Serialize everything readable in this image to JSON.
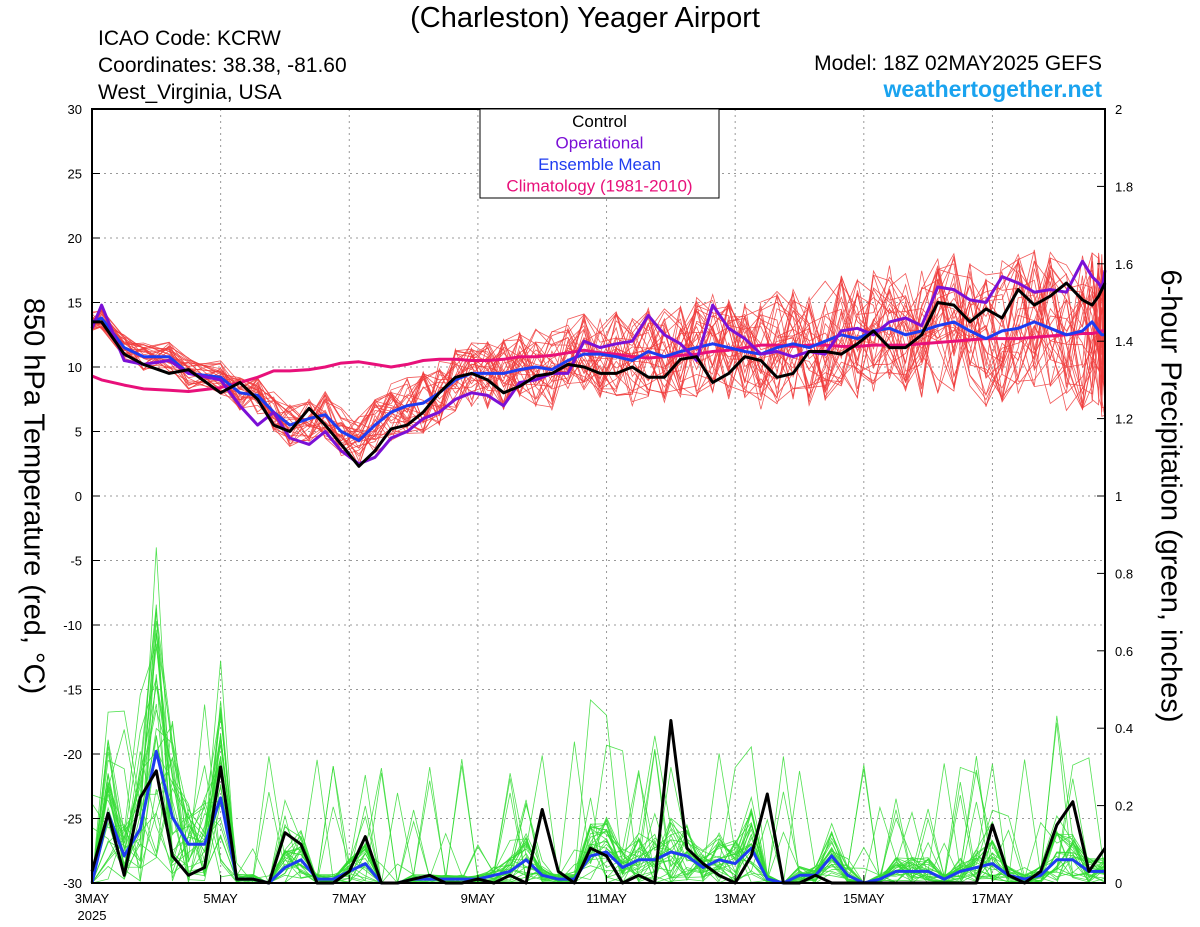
{
  "header": {
    "title": "(Charleston) Yeager Airport",
    "icao": "ICAO Code: KCRW",
    "coordinates": "Coordinates: 38.38, -81.60",
    "location": "West_Virginia, USA",
    "model": "Model: 18Z 02MAY2025 GEFS",
    "site": "weathertogether.net"
  },
  "colors": {
    "control": "#000000",
    "operational": "#7b10d6",
    "ensemble_mean": "#1e3cf0",
    "climatology": "#e8107a",
    "members_temp": "#f03c3c",
    "members_precip": "#32dc32",
    "site": "#1aa3ef"
  },
  "chart_data": {
    "type": "line",
    "ylabel": "850 hPa Temperature (red, °C)",
    "y2label": "6-hour Precipitation (green, inches)",
    "ylim": [
      -30,
      30
    ],
    "y2lim": [
      0,
      2
    ],
    "yticks": [
      "30",
      "25",
      "20",
      "15",
      "10",
      "5",
      "0",
      "-5",
      "-10",
      "-15",
      "-20",
      "-25",
      "-30"
    ],
    "y2ticks": [
      "2",
      "1.8",
      "1.6",
      "1.4",
      "1.2",
      "1",
      "0.8",
      "0.6",
      "0.4",
      "0.2",
      "0"
    ],
    "xlim": [
      0,
      63
    ],
    "xticks": [
      {
        "pos": 0,
        "label": "3MAY",
        "label2": "2025"
      },
      {
        "pos": 8,
        "label": "5MAY"
      },
      {
        "pos": 16,
        "label": "7MAY"
      },
      {
        "pos": 24,
        "label": "9MAY"
      },
      {
        "pos": 32,
        "label": "11MAY"
      },
      {
        "pos": 40,
        "label": "13MAY"
      },
      {
        "pos": 48,
        "label": "15MAY"
      },
      {
        "pos": 56,
        "label": "17MAY"
      }
    ],
    "grid": true,
    "legend_position": "top-center",
    "legend": [
      "Control",
      "Operational",
      "Ensemble Mean",
      "Climatology (1981-2010)"
    ],
    "temperature_series": [
      {
        "name": "Control",
        "values": [
          13.5,
          13.5,
          11.0,
          10.2,
          9.5,
          9.8,
          8.0,
          8.8,
          7.5,
          5.5,
          5.0,
          6.8,
          5.5,
          4.0,
          2.3,
          3.5,
          5.2,
          5.5,
          6.5,
          8.0,
          9.2,
          9.5,
          9.0,
          8.0,
          8.5,
          9.3,
          9.5,
          10.2,
          10.0,
          9.5,
          9.5,
          10.0,
          9.2,
          9.2,
          10.6,
          10.8,
          8.8,
          9.5,
          10.8,
          10.5,
          9.2,
          9.5,
          11.2,
          11.2,
          11.0,
          11.8,
          12.8,
          11.5,
          11.5,
          12.5,
          15.0,
          14.8,
          13.5,
          14.5,
          13.8,
          16.0,
          14.8,
          15.5,
          16.5,
          15.2,
          14.8,
          15.5,
          16.0,
          16.5
        ]
      },
      {
        "name": "Operational",
        "values": [
          13.0,
          14.8,
          10.5,
          10.2,
          10.5,
          9.5,
          9.0,
          7.0,
          5.5,
          6.5,
          4.5,
          4.0,
          5.0,
          3.5,
          2.5,
          3.0,
          4.5,
          5.0,
          6.0,
          6.5,
          7.5,
          8.0,
          7.8,
          7.0,
          8.8,
          9.0,
          9.5,
          9.5,
          12.0,
          11.5,
          11.8,
          12.0,
          14.0,
          12.5,
          11.8,
          10.5,
          14.8,
          13.0,
          12.2,
          11.0,
          11.2,
          10.8,
          11.2,
          11.0,
          12.8,
          13.0,
          12.5,
          13.5,
          13.8,
          13.2,
          16.2,
          16.0,
          15.2,
          15.0,
          17.0,
          16.5,
          15.8,
          16.0,
          15.8,
          18.2,
          17.0,
          16.5,
          16.0,
          17.5
        ]
      },
      {
        "name": "Ensemble Mean",
        "values": [
          13.5,
          13.8,
          11.5,
          10.8,
          10.8,
          9.5,
          9.2,
          8.0,
          7.8,
          6.5,
          5.5,
          6.0,
          6.3,
          5.0,
          4.3,
          5.5,
          6.5,
          7.0,
          7.2,
          8.0,
          9.0,
          9.5,
          9.5,
          9.5,
          9.8,
          10.0,
          9.8,
          10.5,
          11.0,
          11.0,
          10.8,
          10.5,
          11.2,
          10.8,
          11.2,
          11.5,
          11.8,
          11.5,
          11.2,
          11.0,
          11.5,
          11.8,
          11.5,
          12.0,
          12.5,
          12.2,
          12.8,
          13.0,
          12.5,
          12.8,
          13.2,
          13.5,
          12.8,
          12.2,
          12.8,
          13.0,
          13.5,
          13.0,
          12.5,
          12.8,
          13.5,
          12.8,
          12.5,
          12.5
        ]
      },
      {
        "name": "Climatology (1981-2010)",
        "values": [
          9.3,
          9.0,
          8.6,
          8.3,
          8.2,
          8.1,
          8.4,
          8.8,
          9.2,
          9.7,
          9.7,
          9.8,
          10.0,
          10.3,
          10.4,
          10.2,
          10.0,
          10.2,
          10.5,
          10.6,
          10.6,
          10.5,
          10.5,
          10.6,
          10.8,
          10.8,
          10.9,
          11.1,
          11.3,
          11.1,
          11.0,
          10.8,
          10.7,
          10.8,
          10.9,
          11.0,
          11.2,
          11.3,
          11.5,
          11.7,
          11.7,
          11.6,
          11.7,
          11.7,
          11.6,
          11.6,
          11.7,
          11.7,
          11.7,
          11.8,
          11.9,
          12.0,
          12.1,
          12.2,
          12.2,
          12.2,
          12.3,
          12.4,
          12.5,
          12.6,
          12.6,
          12.7,
          12.8,
          12.8
        ]
      }
    ],
    "temperature_x": [
      0,
      0.6,
      2,
      3.2,
      4.8,
      6,
      8,
      9.2,
      10.3,
      11.3,
      12.3,
      13.5,
      14.5,
      15.5,
      16.6,
      17.6,
      18.6,
      19.6,
      20.6,
      21.6,
      22.6,
      23.6,
      24.6,
      25.6,
      26.6,
      27.6,
      28.6,
      29.6,
      30.6,
      31.6,
      32.6,
      33.6,
      34.6,
      35.6,
      36.6,
      37.6,
      38.6,
      39.6,
      40.6,
      41.6,
      42.6,
      43.6,
      44.6,
      45.6,
      46.6,
      47.6,
      48.6,
      49.6,
      50.6,
      51.6,
      52.6,
      53.6,
      54.6,
      55.6,
      56.6,
      57.6,
      58.6,
      59.6,
      60.6,
      61.6,
      62.2,
      62.6,
      62.8,
      63
    ],
    "precipitation_x": [
      0,
      1,
      2,
      3,
      4,
      5,
      6,
      7,
      8,
      9,
      10,
      11,
      12,
      13,
      14,
      15,
      16,
      17,
      18,
      19,
      20,
      21,
      22,
      23,
      24,
      25,
      26,
      27,
      28,
      29,
      30,
      31,
      32,
      33,
      34,
      35,
      36,
      37,
      38,
      39,
      40,
      41,
      42,
      43,
      44,
      45,
      46,
      47,
      48,
      49,
      50,
      51,
      52,
      53,
      54,
      55,
      56,
      57,
      58,
      59,
      60,
      61,
      62,
      63
    ],
    "precipitation_series": [
      {
        "name": "Control",
        "values": [
          0.03,
          0.18,
          0.02,
          0.22,
          0.29,
          0.07,
          0.02,
          0.04,
          0.3,
          0.01,
          0.01,
          0.0,
          0.13,
          0.1,
          0.0,
          0.0,
          0.03,
          0.12,
          0.0,
          0.0,
          0.01,
          0.02,
          0.0,
          0.0,
          0.01,
          0.0,
          0.02,
          0.0,
          0.19,
          0.03,
          0.0,
          0.09,
          0.07,
          0.0,
          0.02,
          0.0,
          0.42,
          0.09,
          0.05,
          0.02,
          0.0,
          0.07,
          0.23,
          0.0,
          0.0,
          0.02,
          0.0,
          0.0,
          0.0,
          0.0,
          0.0,
          0.0,
          0.0,
          0.0,
          0.0,
          0.0,
          0.15,
          0.02,
          0.0,
          0.03,
          0.15,
          0.21,
          0.03,
          0.09
        ]
      },
      {
        "name": "Ensemble Mean",
        "values": [
          0.0,
          0.18,
          0.07,
          0.14,
          0.34,
          0.17,
          0.1,
          0.1,
          0.22,
          0.01,
          0.01,
          0.0,
          0.04,
          0.06,
          0.01,
          0.01,
          0.03,
          0.05,
          0.0,
          0.0,
          0.01,
          0.01,
          0.01,
          0.01,
          0.01,
          0.02,
          0.03,
          0.06,
          0.02,
          0.01,
          0.01,
          0.07,
          0.08,
          0.04,
          0.06,
          0.06,
          0.08,
          0.07,
          0.04,
          0.06,
          0.05,
          0.09,
          0.01,
          0.0,
          0.02,
          0.02,
          0.07,
          0.02,
          0.0,
          0.01,
          0.03,
          0.03,
          0.03,
          0.01,
          0.03,
          0.04,
          0.05,
          0.02,
          0.01,
          0.02,
          0.06,
          0.06,
          0.03,
          0.03
        ]
      }
    ]
  }
}
